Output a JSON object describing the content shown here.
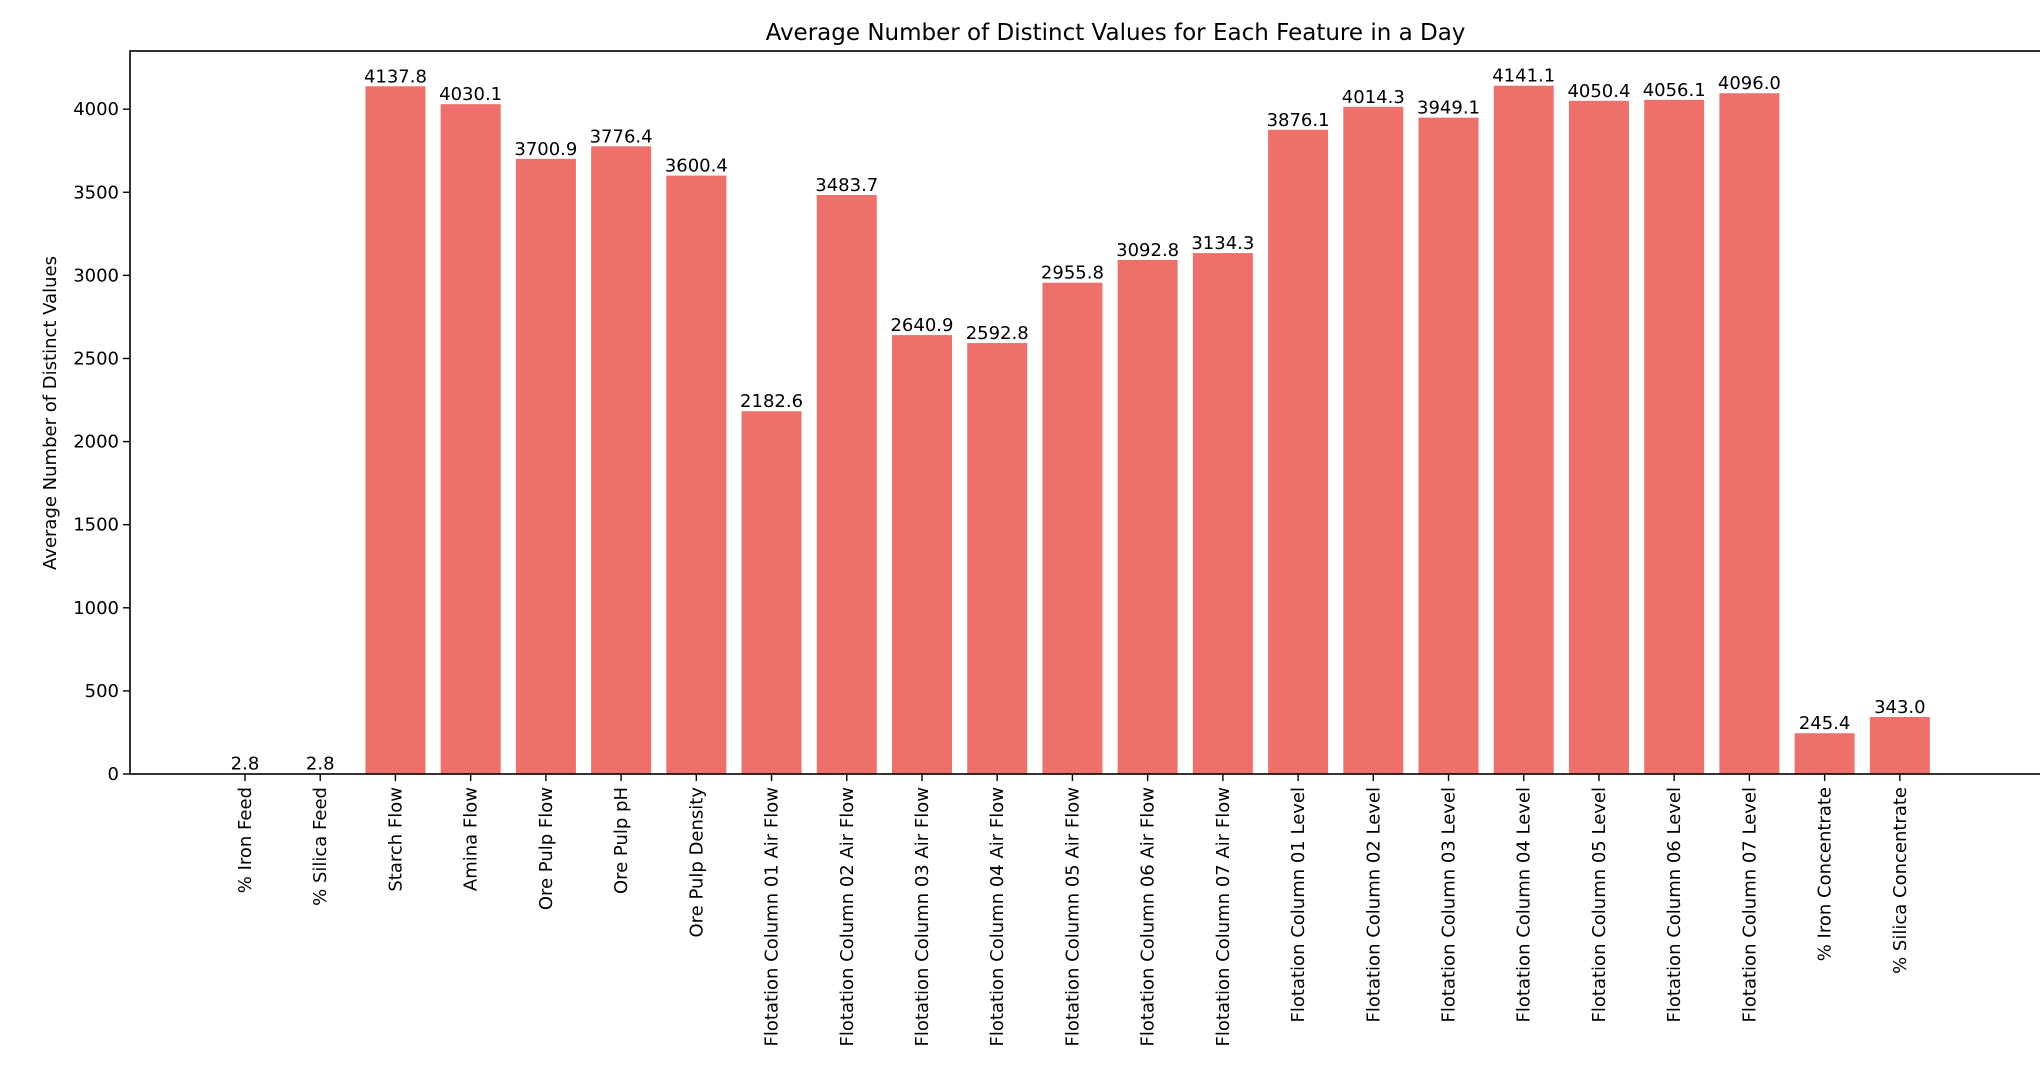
{
  "chart_data": {
    "type": "bar",
    "title": "Average Number of Distinct Values for Each Feature in a Day",
    "xlabel": "",
    "ylabel": "Average Number of Distinct Values",
    "ylim": [
      0,
      4350
    ],
    "yticks": [
      0,
      500,
      1000,
      1500,
      2000,
      2500,
      3000,
      3500,
      4000
    ],
    "grid": false,
    "bar_color": "#ed706b",
    "categories": [
      "% Iron Feed",
      "% Silica Feed",
      "Starch Flow",
      "Amina Flow",
      "Ore Pulp Flow",
      "Ore Pulp pH",
      "Ore Pulp Density",
      "Flotation Column 01 Air Flow",
      "Flotation Column 02 Air Flow",
      "Flotation Column 03 Air Flow",
      "Flotation Column 04 Air Flow",
      "Flotation Column 05 Air Flow",
      "Flotation Column 06 Air Flow",
      "Flotation Column 07 Air Flow",
      "Flotation Column 01 Level",
      "Flotation Column 02 Level",
      "Flotation Column 03 Level",
      "Flotation Column 04 Level",
      "Flotation Column 05 Level",
      "Flotation Column 06 Level",
      "Flotation Column 07 Level",
      "% Iron Concentrate",
      "% Silica Concentrate"
    ],
    "values": [
      2.8,
      2.8,
      4137.8,
      4030.1,
      3700.9,
      3776.4,
      3600.4,
      2182.6,
      3483.7,
      2640.9,
      2592.8,
      2955.8,
      3092.8,
      3134.3,
      3876.1,
      4014.3,
      3949.1,
      4141.1,
      4050.4,
      4056.1,
      4096.0,
      245.4,
      343.0
    ],
    "value_labels": [
      "2.8",
      "2.8",
      "4137.8",
      "4030.1",
      "3700.9",
      "3776.4",
      "3600.4",
      "2182.6",
      "3483.7",
      "2640.9",
      "2592.8",
      "2955.8",
      "3092.8",
      "3134.3",
      "3876.1",
      "4014.3",
      "3949.1",
      "4141.1",
      "4050.4",
      "4056.1",
      "4096.0",
      "245.4",
      "343.0"
    ]
  }
}
